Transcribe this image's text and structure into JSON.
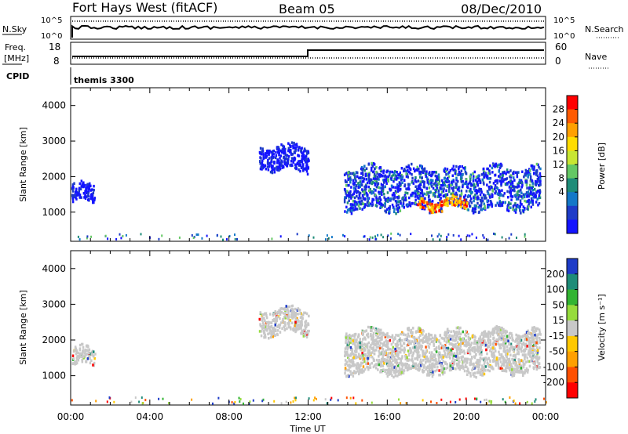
{
  "header": {
    "station": "Fort Hays West (fitACF)",
    "beam": "Beam 05",
    "date": "08/Dec/2010"
  },
  "panels_top": {
    "nsky_label": "N.Sky",
    "nsearch_label": "N.Search",
    "nsky_ticks": [
      "10^5",
      "10^0"
    ],
    "nsearch_ticks": [
      "10^5",
      "10^0"
    ],
    "freq_label": "Freq.",
    "freq_unit": "[MHz]",
    "freq_ticks": [
      "18",
      "8"
    ],
    "nave_label": "Nave",
    "nave_ticks": [
      "60",
      "0"
    ],
    "cpid_label": "CPID",
    "cpid_value": "themis 3300"
  },
  "chart_data": [
    {
      "type": "heatmap",
      "quantity": "Power",
      "ylabel": "Slant Range [km]",
      "ylim": [
        180,
        4500
      ],
      "yticks": [
        1000,
        2000,
        3000,
        4000
      ],
      "xlabel": "Time UT",
      "xlim": [
        "00:00",
        "24:00"
      ],
      "xticks": [
        "00:00",
        "04:00",
        "08:00",
        "12:00",
        "16:00",
        "20:00",
        "00:00"
      ],
      "colorbar": {
        "label": "Power [dB]",
        "ticks": [
          "28",
          "24",
          "20",
          "16",
          "12",
          "8",
          "4"
        ],
        "colors": [
          "#ff0000",
          "#ff5a00",
          "#ffa000",
          "#ffdc00",
          "#c8e632",
          "#64c864",
          "#1e8c78",
          "#1478c8",
          "#1e3cc8",
          "#1414ff"
        ]
      },
      "regions": [
        {
          "t0": 0.0,
          "t1": 1.2,
          "r0": 1300,
          "r1": 1800,
          "level": "low"
        },
        {
          "t0": 9.5,
          "t1": 12.0,
          "r0": 2200,
          "r1": 2900,
          "level": "low"
        },
        {
          "t0": 13.8,
          "t1": 23.7,
          "r0": 1100,
          "r1": 2300,
          "level": "medium"
        },
        {
          "t0": 17.5,
          "t1": 20.0,
          "r0": 1100,
          "r1": 1400,
          "level": "high"
        }
      ]
    },
    {
      "type": "heatmap",
      "quantity": "Velocity",
      "ylabel": "Slant Range [km]",
      "ylim": [
        180,
        4500
      ],
      "yticks": [
        1000,
        2000,
        3000,
        4000
      ],
      "xlabel": "Time UT",
      "xlim": [
        "00:00",
        "24:00"
      ],
      "xticks": [
        "00:00",
        "04:00",
        "08:00",
        "12:00",
        "16:00",
        "20:00",
        "00:00"
      ],
      "colorbar": {
        "label": "Velocity [m s⁻¹]",
        "ticks": [
          "200",
          "100",
          "50",
          "15",
          "-15",
          "-50",
          "-100",
          "-200"
        ],
        "colors": [
          "#1e3cc8",
          "#1e8c78",
          "#32b432",
          "#96dc3c",
          "#c8c8c8",
          "#ffc800",
          "#ffa000",
          "#ff5000",
          "#ff0000"
        ]
      },
      "regions": [
        {
          "t0": 0.0,
          "t1": 1.2,
          "r0": 1300,
          "r1": 1800,
          "velocity": "near-zero"
        },
        {
          "t0": 9.5,
          "t1": 12.0,
          "r0": 2200,
          "r1": 2900,
          "velocity": "near-zero"
        },
        {
          "t0": 13.8,
          "t1": 23.7,
          "r0": 1100,
          "r1": 2300,
          "velocity": "near-zero"
        }
      ]
    }
  ]
}
